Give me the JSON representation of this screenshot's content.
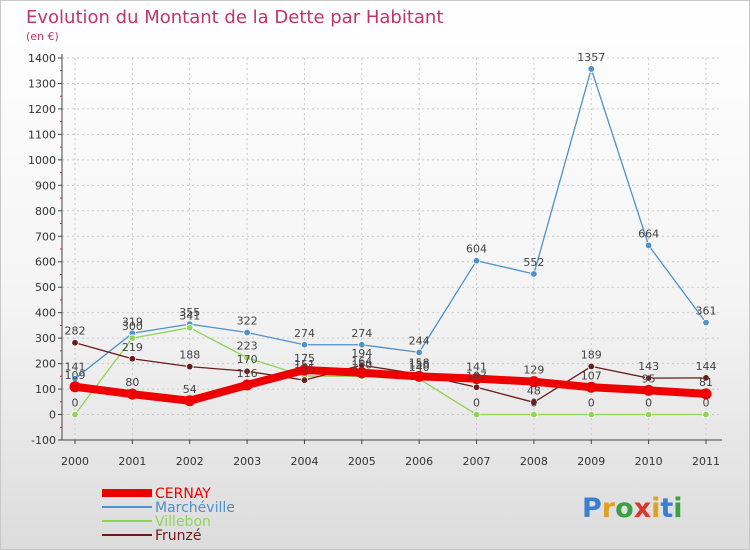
{
  "chart_data": {
    "type": "line",
    "title": "Evolution du Montant de la Dette par Habitant",
    "subtitle": "(en €)",
    "xlabel": "",
    "ylabel": "",
    "ylim": [
      -100,
      1400
    ],
    "yticks": [
      -100,
      0,
      100,
      200,
      300,
      400,
      500,
      600,
      700,
      800,
      900,
      1000,
      1100,
      1200,
      1300,
      1400
    ],
    "categories": [
      "2000",
      "2001",
      "2002",
      "2003",
      "2004",
      "2005",
      "2006",
      "2007",
      "2008",
      "2009",
      "2010",
      "2011"
    ],
    "grid": true,
    "legend_position": "bottom-left",
    "series": [
      {
        "name": "Marchéville",
        "color": "#4e91cc",
        "values": [
          141,
          319,
          355,
          322,
          274,
          274,
          244,
          604,
          552,
          1357,
          664,
          361
        ]
      },
      {
        "name": "Villebon",
        "color": "#8ed556",
        "values": [
          0,
          300,
          341,
          223,
          151,
          150,
          140,
          0,
          0,
          0,
          0,
          0
        ]
      },
      {
        "name": "Frunzé",
        "color": "#6e1a1a",
        "values": [
          282,
          219,
          188,
          170,
          135,
          194,
          158,
          107,
          48,
          189,
          143,
          144
        ]
      },
      {
        "name": "CERNAY",
        "color": "#ee0000",
        "values": [
          109,
          80,
          54,
          116,
          175,
          164,
          150,
          141,
          129,
          107,
          95,
          81
        ]
      }
    ],
    "legend_order": [
      "CERNAY",
      "Marchéville",
      "Villebon",
      "Frunzé"
    ]
  },
  "branding": {
    "logo_text": "Proxiti"
  }
}
